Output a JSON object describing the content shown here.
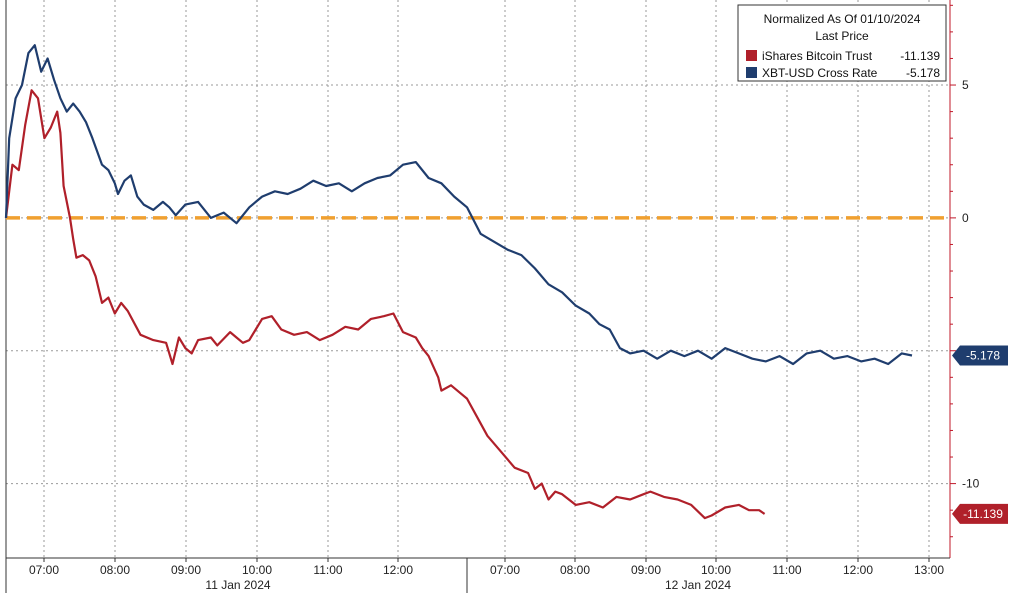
{
  "chart_data": {
    "type": "line",
    "legend": {
      "title": "Normalized As Of 01/10/2024",
      "subtitle": "Last Price",
      "placement": "top-right"
    },
    "y_axis": {
      "side": "right",
      "ylim": [
        -12.8,
        8.2
      ],
      "ticks": [
        5,
        0,
        -5,
        -10
      ],
      "tick_labels": [
        "5",
        "0",
        "",
        "-10"
      ]
    },
    "x_axis": {
      "tick_labels": [
        "07:00",
        "08:00",
        "09:00",
        "10:00",
        "11:00",
        "12:00",
        "07:00",
        "08:00",
        "09:00",
        "10:00",
        "11:00",
        "12:00",
        "13:00"
      ],
      "date_labels": [
        "11 Jan 2024",
        "12 Jan 2024"
      ]
    },
    "grid": true,
    "reference_line": {
      "y": 0,
      "color": "#f0a030",
      "style": "dashed"
    },
    "series": [
      {
        "name": "iShares Bitcoin Trust",
        "last_label": "-11.139",
        "last_value": -11.139,
        "color": "#b0202a",
        "points": [
          [
            0.0,
            0.0
          ],
          [
            0.1,
            2.0
          ],
          [
            0.2,
            1.8
          ],
          [
            0.3,
            3.5
          ],
          [
            0.4,
            4.8
          ],
          [
            0.5,
            4.5
          ],
          [
            0.6,
            3.0
          ],
          [
            0.7,
            3.4
          ],
          [
            0.8,
            4.0
          ],
          [
            0.85,
            3.2
          ],
          [
            0.9,
            1.2
          ],
          [
            1.0,
            0.0
          ],
          [
            1.05,
            -0.8
          ],
          [
            1.1,
            -1.5
          ],
          [
            1.2,
            -1.4
          ],
          [
            1.3,
            -1.6
          ],
          [
            1.4,
            -2.2
          ],
          [
            1.5,
            -3.2
          ],
          [
            1.6,
            -3.0
          ],
          [
            1.7,
            -3.6
          ],
          [
            1.8,
            -3.2
          ],
          [
            1.9,
            -3.5
          ],
          [
            2.1,
            -4.4
          ],
          [
            2.3,
            -4.6
          ],
          [
            2.5,
            -4.7
          ],
          [
            2.6,
            -5.5
          ],
          [
            2.7,
            -4.5
          ],
          [
            2.8,
            -4.9
          ],
          [
            2.9,
            -5.1
          ],
          [
            3.0,
            -4.6
          ],
          [
            3.2,
            -4.5
          ],
          [
            3.3,
            -4.8
          ],
          [
            3.5,
            -4.3
          ],
          [
            3.6,
            -4.5
          ],
          [
            3.7,
            -4.7
          ],
          [
            3.8,
            -4.6
          ],
          [
            4.0,
            -3.8
          ],
          [
            4.15,
            -3.7
          ],
          [
            4.3,
            -4.2
          ],
          [
            4.5,
            -4.4
          ],
          [
            4.7,
            -4.3
          ],
          [
            4.9,
            -4.6
          ],
          [
            5.1,
            -4.4
          ],
          [
            5.3,
            -4.1
          ],
          [
            5.5,
            -4.2
          ],
          [
            5.7,
            -3.8
          ],
          [
            5.9,
            -3.7
          ],
          [
            6.05,
            -3.6
          ],
          [
            6.2,
            -4.3
          ],
          [
            6.4,
            -4.5
          ],
          [
            6.5,
            -4.9
          ],
          [
            6.6,
            -5.2
          ],
          [
            6.75,
            -6.0
          ],
          [
            6.8,
            -6.5
          ],
          [
            6.95,
            -6.3
          ],
          [
            7.1,
            -6.6
          ],
          [
            7.2,
            -6.8
          ],
          [
            7.35,
            -7.5
          ],
          [
            7.5,
            -8.2
          ],
          [
            7.7,
            -8.8
          ],
          [
            7.9,
            -9.4
          ],
          [
            8.1,
            -9.6
          ],
          [
            8.2,
            -10.2
          ],
          [
            8.3,
            -10.0
          ],
          [
            8.4,
            -10.6
          ],
          [
            8.5,
            -10.3
          ],
          [
            8.6,
            -10.4
          ],
          [
            8.8,
            -10.8
          ],
          [
            9.0,
            -10.7
          ],
          [
            9.2,
            -10.9
          ],
          [
            9.4,
            -10.5
          ],
          [
            9.6,
            -10.6
          ],
          [
            9.8,
            -10.4
          ],
          [
            9.9,
            -10.3
          ],
          [
            10.1,
            -10.5
          ],
          [
            10.3,
            -10.6
          ],
          [
            10.5,
            -10.8
          ],
          [
            10.7,
            -11.3
          ],
          [
            10.8,
            -11.2
          ],
          [
            11.0,
            -10.9
          ],
          [
            11.2,
            -10.8
          ],
          [
            11.35,
            -11.0
          ],
          [
            11.5,
            -11.0
          ],
          [
            11.58,
            -11.139
          ]
        ]
      },
      {
        "name": "XBT-USD Cross Rate",
        "last_label": "-5.178",
        "last_value": -5.178,
        "color": "#1f3d6e",
        "points": [
          [
            0.0,
            0.0
          ],
          [
            0.05,
            3.0
          ],
          [
            0.15,
            4.5
          ],
          [
            0.25,
            5.0
          ],
          [
            0.35,
            6.2
          ],
          [
            0.45,
            6.5
          ],
          [
            0.55,
            5.5
          ],
          [
            0.65,
            6.0
          ],
          [
            0.75,
            5.2
          ],
          [
            0.85,
            4.5
          ],
          [
            0.95,
            4.0
          ],
          [
            1.05,
            4.3
          ],
          [
            1.15,
            4.0
          ],
          [
            1.25,
            3.6
          ],
          [
            1.35,
            3.0
          ],
          [
            1.5,
            2.0
          ],
          [
            1.6,
            1.8
          ],
          [
            1.7,
            1.3
          ],
          [
            1.75,
            0.9
          ],
          [
            1.85,
            1.4
          ],
          [
            1.95,
            1.6
          ],
          [
            2.05,
            0.8
          ],
          [
            2.15,
            0.5
          ],
          [
            2.3,
            0.3
          ],
          [
            2.45,
            0.6
          ],
          [
            2.55,
            0.4
          ],
          [
            2.65,
            0.1
          ],
          [
            2.8,
            0.5
          ],
          [
            3.0,
            0.6
          ],
          [
            3.2,
            0.0
          ],
          [
            3.4,
            0.2
          ],
          [
            3.6,
            -0.2
          ],
          [
            3.8,
            0.4
          ],
          [
            4.0,
            0.8
          ],
          [
            4.2,
            1.0
          ],
          [
            4.4,
            0.9
          ],
          [
            4.6,
            1.1
          ],
          [
            4.8,
            1.4
          ],
          [
            5.0,
            1.2
          ],
          [
            5.2,
            1.3
          ],
          [
            5.4,
            1.0
          ],
          [
            5.6,
            1.3
          ],
          [
            5.8,
            1.5
          ],
          [
            6.0,
            1.6
          ],
          [
            6.2,
            2.0
          ],
          [
            6.4,
            2.1
          ],
          [
            6.6,
            1.5
          ],
          [
            6.8,
            1.3
          ],
          [
            7.0,
            0.8
          ],
          [
            7.2,
            0.4
          ],
          [
            7.4,
            -0.6
          ],
          [
            7.6,
            -0.9
          ],
          [
            7.8,
            -1.2
          ],
          [
            8.0,
            -1.4
          ],
          [
            8.2,
            -1.9
          ],
          [
            8.4,
            -2.5
          ],
          [
            8.6,
            -2.8
          ],
          [
            8.8,
            -3.3
          ],
          [
            9.0,
            -3.6
          ],
          [
            9.15,
            -4.0
          ],
          [
            9.3,
            -4.2
          ],
          [
            9.45,
            -4.9
          ],
          [
            9.6,
            -5.1
          ],
          [
            9.8,
            -5.0
          ],
          [
            10.0,
            -5.3
          ],
          [
            10.2,
            -5.0
          ],
          [
            10.4,
            -5.2
          ],
          [
            10.6,
            -5.0
          ],
          [
            10.8,
            -5.3
          ],
          [
            11.0,
            -4.9
          ],
          [
            11.2,
            -5.1
          ],
          [
            11.4,
            -5.3
          ],
          [
            11.6,
            -5.4
          ],
          [
            11.8,
            -5.2
          ],
          [
            12.0,
            -5.5
          ],
          [
            12.2,
            -5.1
          ],
          [
            12.4,
            -5.0
          ],
          [
            12.6,
            -5.3
          ],
          [
            12.8,
            -5.2
          ],
          [
            13.0,
            -5.4
          ],
          [
            13.2,
            -5.3
          ],
          [
            13.4,
            -5.5
          ],
          [
            13.6,
            -5.1
          ],
          [
            13.75,
            -5.178
          ]
        ]
      }
    ]
  },
  "colors": {
    "red_series": "#b0202a",
    "blue_series": "#1f3d6e",
    "zero_line": "#f0a030",
    "grid": "#9a9a9a",
    "axis_red": "#c0182a"
  }
}
